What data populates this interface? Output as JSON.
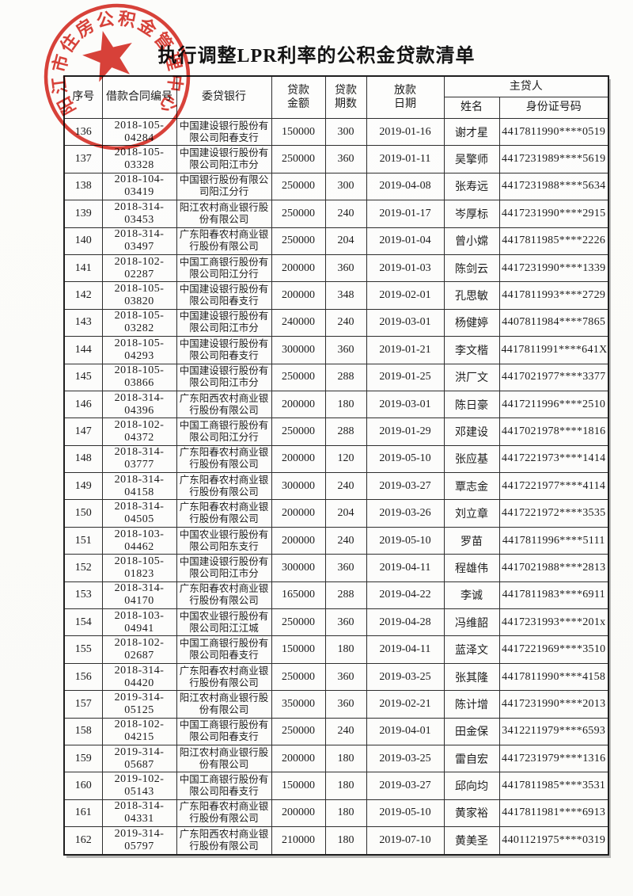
{
  "page": {
    "title": "执行调整LPR利率的公积金贷款清单"
  },
  "stamp": {
    "text": "阳江市住房公积金管理中心",
    "color": "#d5281e"
  },
  "table": {
    "headers": {
      "index": "序号",
      "contract": "借款合同编号",
      "bank": "委贷银行",
      "amount": "贷款\n金额",
      "periods": "贷款\n期数",
      "date": "放款\n日期",
      "borrower_group": "主贷人",
      "name": "姓名",
      "id": "身份证号码"
    },
    "rows": [
      [
        "136",
        "2018-105-04284",
        "中国建设银行股份有限公司阳春支行",
        "150000",
        "300",
        "2019-01-16",
        "谢才星",
        "4417811990****0519"
      ],
      [
        "137",
        "2018-105-03328",
        "中国建设银行股份有限公司阳江市分",
        "250000",
        "360",
        "2019-01-11",
        "吴擎师",
        "4417231989****5619"
      ],
      [
        "138",
        "2018-104-03419",
        "中国银行股份有限公司阳江分行",
        "250000",
        "300",
        "2019-04-08",
        "张寿远",
        "4417231988****5634"
      ],
      [
        "139",
        "2018-314-03453",
        "阳江农村商业银行股份有限公司",
        "250000",
        "240",
        "2019-01-17",
        "岑厚标",
        "4417231990****2915"
      ],
      [
        "140",
        "2018-314-03497",
        "广东阳春农村商业银行股份有限公司",
        "250000",
        "204",
        "2019-01-04",
        "曾小嫦",
        "4417811985****2226"
      ],
      [
        "141",
        "2018-102-02287",
        "中国工商银行股份有限公司阳江分行",
        "200000",
        "360",
        "2019-01-03",
        "陈剑云",
        "4417231990****1339"
      ],
      [
        "142",
        "2018-105-03820",
        "中国建设银行股份有限公司阳春支行",
        "200000",
        "348",
        "2019-02-01",
        "孔思敏",
        "4417811993****2729"
      ],
      [
        "143",
        "2018-105-03282",
        "中国建设银行股份有限公司阳江市分",
        "240000",
        "240",
        "2019-03-01",
        "杨健婷",
        "4407811984****7865"
      ],
      [
        "144",
        "2018-105-04293",
        "中国建设银行股份有限公司阳春支行",
        "300000",
        "360",
        "2019-01-21",
        "李文楷",
        "4417811991****641X"
      ],
      [
        "145",
        "2018-105-03866",
        "中国建设银行股份有限公司阳江市分",
        "250000",
        "288",
        "2019-01-25",
        "洪厂文",
        "4417021977****3377"
      ],
      [
        "146",
        "2018-314-04396",
        "广东阳西农村商业银行股份有限公司",
        "200000",
        "180",
        "2019-03-01",
        "陈日豪",
        "4417211996****2510"
      ],
      [
        "147",
        "2018-102-04372",
        "中国工商银行股份有限公司阳江分行",
        "250000",
        "288",
        "2019-01-29",
        "邓建设",
        "4417021978****1816"
      ],
      [
        "148",
        "2018-314-03777",
        "广东阳春农村商业银行股份有限公司",
        "200000",
        "120",
        "2019-05-10",
        "张应基",
        "4417221973****1414"
      ],
      [
        "149",
        "2018-314-04158",
        "广东阳春农村商业银行股份有限公司",
        "300000",
        "240",
        "2019-03-27",
        "覃志金",
        "4417221977****4114"
      ],
      [
        "150",
        "2018-314-04505",
        "广东阳春农村商业银行股份有限公司",
        "200000",
        "204",
        "2019-03-26",
        "刘立章",
        "4417221972****3535"
      ],
      [
        "151",
        "2018-103-04462",
        "中国农业银行股份有限公司阳东支行",
        "200000",
        "240",
        "2019-05-10",
        "罗苗",
        "4417811996****5111"
      ],
      [
        "152",
        "2018-105-01823",
        "中国建设银行股份有限公司阳江市分",
        "300000",
        "360",
        "2019-04-11",
        "程雄伟",
        "4417021988****2813"
      ],
      [
        "153",
        "2018-314-04170",
        "广东阳春农村商业银行股份有限公司",
        "165000",
        "288",
        "2019-04-22",
        "李诚",
        "4417811983****6911"
      ],
      [
        "154",
        "2018-103-04941",
        "中国农业银行股份有限公司阳江江城",
        "250000",
        "360",
        "2019-04-28",
        "冯维韶",
        "4417231993****201x"
      ],
      [
        "155",
        "2018-102-02687",
        "中国工商银行股份有限公司阳春支行",
        "150000",
        "180",
        "2019-04-11",
        "蓝泽文",
        "4417221969****3510"
      ],
      [
        "156",
        "2018-314-04420",
        "广东阳春农村商业银行股份有限公司",
        "250000",
        "360",
        "2019-03-25",
        "张其隆",
        "4417811990****4158"
      ],
      [
        "157",
        "2019-314-05125",
        "阳江农村商业银行股份有限公司",
        "350000",
        "360",
        "2019-02-21",
        "陈计增",
        "4417231990****2013"
      ],
      [
        "158",
        "2018-102-04215",
        "中国工商银行股份有限公司阳春支行",
        "250000",
        "240",
        "2019-04-01",
        "田金保",
        "3412211979****6593"
      ],
      [
        "159",
        "2019-314-05687",
        "阳江农村商业银行股份有限公司",
        "200000",
        "180",
        "2019-03-25",
        "雷自宏",
        "4417231979****1316"
      ],
      [
        "160",
        "2019-102-05143",
        "中国工商银行股份有限公司阳春支行",
        "150000",
        "180",
        "2019-03-27",
        "邱向均",
        "4417811985****3531"
      ],
      [
        "161",
        "2018-314-04331",
        "广东阳春农村商业银行股份有限公司",
        "200000",
        "180",
        "2019-05-10",
        "黄家裕",
        "4417811981****6913"
      ],
      [
        "162",
        "2019-314-05797",
        "广东阳西农村商业银行股份有限公司",
        "210000",
        "180",
        "2019-07-10",
        "黄美圣",
        "4401121975****0319"
      ]
    ]
  }
}
